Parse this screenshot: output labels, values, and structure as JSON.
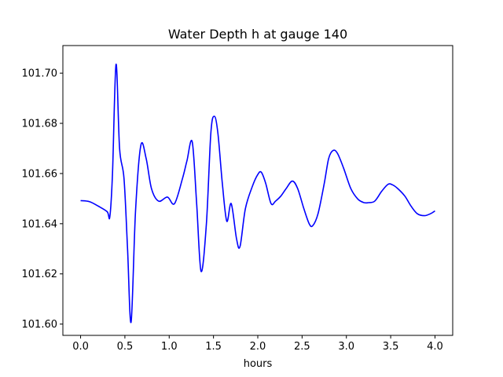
{
  "chart_data": {
    "type": "line",
    "title": "Water Depth h at gauge 140",
    "xlabel": "hours",
    "ylabel": "",
    "xlim": [
      -0.2,
      4.2
    ],
    "ylim": [
      101.5955,
      101.711
    ],
    "grid": false,
    "xticks": [
      0.0,
      0.5,
      1.0,
      1.5,
      2.0,
      2.5,
      3.0,
      3.5,
      4.0
    ],
    "xtick_labels": [
      "0.0",
      "0.5",
      "1.0",
      "1.5",
      "2.0",
      "2.5",
      "3.0",
      "3.5",
      "4.0"
    ],
    "yticks": [
      101.6,
      101.62,
      101.64,
      101.66,
      101.68,
      101.7
    ],
    "ytick_labels": [
      "101.60",
      "101.62",
      "101.64",
      "101.66",
      "101.68",
      "101.70"
    ],
    "series": [
      {
        "color": "#0000ff",
        "x": [
          0.0,
          0.1,
          0.2,
          0.3,
          0.33,
          0.36,
          0.4,
          0.44,
          0.49,
          0.53,
          0.57,
          0.62,
          0.68,
          0.74,
          0.8,
          0.88,
          0.98,
          1.06,
          1.15,
          1.2,
          1.26,
          1.31,
          1.36,
          1.42,
          1.47,
          1.51,
          1.55,
          1.6,
          1.65,
          1.7,
          1.76,
          1.8,
          1.86,
          1.94,
          2.0,
          2.04,
          2.09,
          2.15,
          2.2,
          2.26,
          2.32,
          2.39,
          2.45,
          2.52,
          2.58,
          2.62,
          2.68,
          2.75,
          2.8,
          2.85,
          2.9,
          2.97,
          3.05,
          3.13,
          3.2,
          3.25,
          3.32,
          3.4,
          3.47,
          3.52,
          3.58,
          3.66,
          3.73,
          3.8,
          3.88,
          3.95,
          4.0
        ],
        "y": [
          101.6492,
          101.6488,
          101.647,
          101.6448,
          101.6428,
          101.66,
          101.7035,
          101.67,
          101.658,
          101.63,
          101.6008,
          101.645,
          101.6712,
          101.666,
          101.654,
          101.649,
          101.6506,
          101.648,
          101.658,
          101.665,
          101.6726,
          101.648,
          101.621,
          101.64,
          101.676,
          101.6828,
          101.676,
          101.656,
          101.641,
          101.648,
          101.634,
          101.631,
          101.646,
          101.655,
          101.6596,
          101.6605,
          101.656,
          101.648,
          101.649,
          101.651,
          101.654,
          101.657,
          101.654,
          101.646,
          101.64,
          101.6392,
          101.644,
          101.656,
          101.666,
          101.6692,
          101.668,
          101.662,
          101.654,
          101.6498,
          101.6484,
          101.6484,
          101.649,
          101.653,
          101.6557,
          101.6555,
          101.654,
          101.651,
          101.647,
          101.644,
          101.6432,
          101.644,
          101.6451
        ]
      }
    ]
  }
}
